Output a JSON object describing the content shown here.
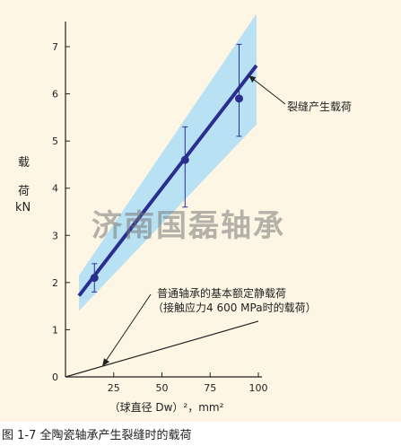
{
  "caption": "图 1-7 全陶瓷轴承产生裂缝时的载荷",
  "watermark": "济南国磊轴承",
  "colors": {
    "background": "#fdf6e4",
    "band": "#b8e2f4",
    "line": "#2a2f8f",
    "point": "#2a2f8f",
    "errorbar": "#2a2f8f",
    "static_line": "#222222"
  },
  "chart_data": {
    "type": "scatter",
    "xlabel": "（球直径 Dw）²，mm²",
    "ylabel_chars": [
      "载",
      "荷",
      "kN"
    ],
    "xlim": [
      0,
      100
    ],
    "ylim": [
      0,
      7
    ],
    "xticks": [
      25,
      50,
      75,
      100
    ],
    "yticks": [
      0,
      1,
      2,
      3,
      4,
      5,
      6,
      7
    ],
    "grid": false,
    "points": [
      {
        "x": 15,
        "y": 2.1,
        "err_low": 1.8,
        "err_high": 2.4
      },
      {
        "x": 62,
        "y": 4.6,
        "err_low": 3.6,
        "err_high": 5.3
      },
      {
        "x": 90,
        "y": 5.9,
        "err_low": 5.1,
        "err_high": 7.05
      }
    ],
    "fit_line": {
      "x": [
        7,
        99
      ],
      "y": [
        1.72,
        6.6
      ]
    },
    "band": {
      "upper": [
        [
          7,
          2.15
        ],
        [
          99,
          7.7
        ]
      ],
      "lower": [
        [
          7,
          1.4
        ],
        [
          99,
          5.35
        ]
      ]
    },
    "static_load_line": {
      "x": [
        0,
        100
      ],
      "y": [
        0,
        1.18
      ]
    },
    "annotations": {
      "crack_load": "裂缝产生载荷",
      "static_load_line1": "普通轴承的基本额定静载荷",
      "static_load_line2": "（接触应力4 600 MPa时的载荷）"
    }
  }
}
